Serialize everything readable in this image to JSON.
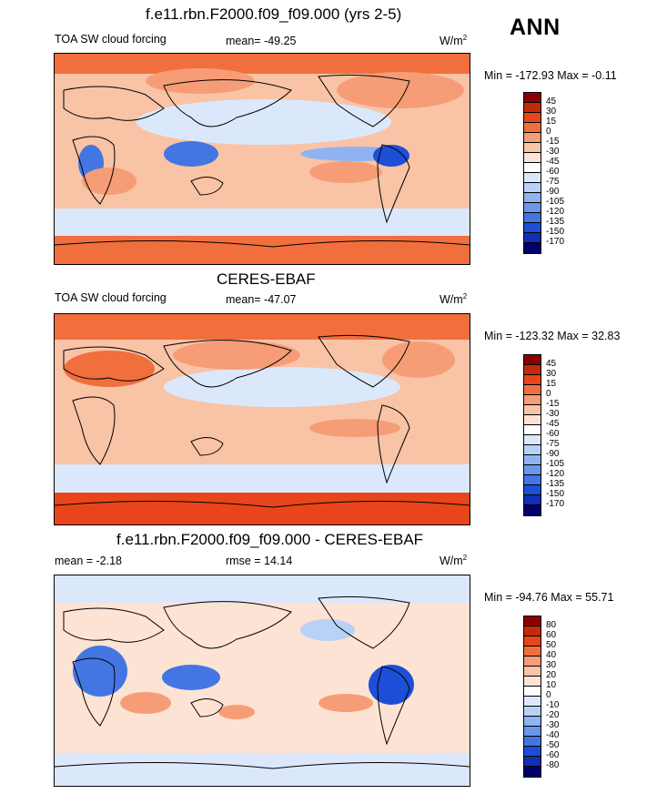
{
  "header": {
    "main_title": "f.e11.rbn.F2000.f09_f09.000 (yrs 2-5)",
    "season": "ANN"
  },
  "panels": [
    {
      "heading": "",
      "left_label": "TOA SW cloud forcing",
      "center_label": "mean= -49.25",
      "units": "W/m",
      "units_sup": "2",
      "minmax": "Min = -172.93 Max =  -0.11",
      "colorbar_labels": [
        "45",
        "30",
        "15",
        "0",
        "-15",
        "-30",
        "-45",
        "-60",
        "-75",
        "-90",
        "-105",
        "-120",
        "-135",
        "-150",
        "-170"
      ]
    },
    {
      "heading": "CERES-EBAF",
      "left_label": "TOA SW cloud forcing",
      "center_label": "mean= -47.07",
      "units": "W/m",
      "units_sup": "2",
      "minmax": "Min = -123.32 Max =  32.83",
      "colorbar_labels": [
        "45",
        "30",
        "15",
        "0",
        "-15",
        "-30",
        "-45",
        "-60",
        "-75",
        "-90",
        "-105",
        "-120",
        "-135",
        "-150",
        "-170"
      ]
    },
    {
      "heading": "f.e11.rbn.F2000.f09_f09.000 - CERES-EBAF",
      "left_label": "mean =  -2.18",
      "center_label": "rmse =  14.14",
      "units": "W/m",
      "units_sup": "2",
      "minmax": "Min = -94.76 Max =  55.71",
      "colorbar_labels": [
        "80",
        "60",
        "50",
        "40",
        "30",
        "20",
        "10",
        "0",
        "-10",
        "-20",
        "-30",
        "-40",
        "-50",
        "-60",
        "-80"
      ]
    }
  ],
  "colorbar_colors": [
    "#8b0000",
    "#c32a0c",
    "#e8451a",
    "#f16f3d",
    "#f69d77",
    "#f9c3a6",
    "#fde3d3",
    "#ffffff",
    "#dbe8fb",
    "#b8d1f7",
    "#8fb3f0",
    "#6a97ea",
    "#4376e3",
    "#1d4ed8",
    "#0f2fb5",
    "#00006b"
  ]
}
